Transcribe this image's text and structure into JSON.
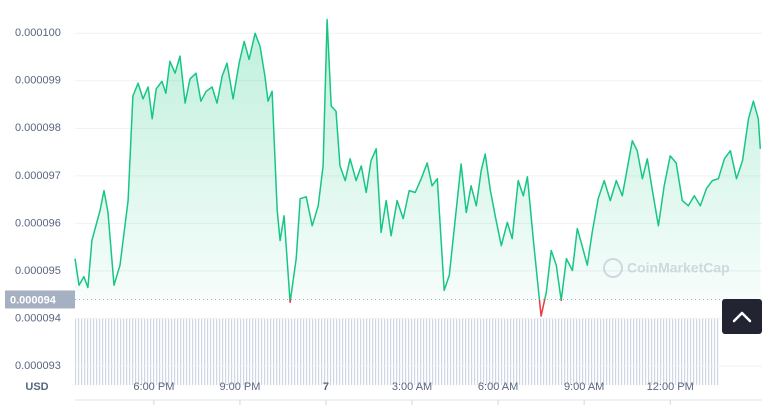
{
  "chart_data": {
    "type": "line",
    "currency": "USD",
    "watermark": "CoinMarketCap",
    "x": [
      15.25,
      15.39,
      15.56,
      15.7,
      15.84,
      16.12,
      16.26,
      16.4,
      16.61,
      16.82,
      17.1,
      17.27,
      17.45,
      17.62,
      17.8,
      17.94,
      18.08,
      18.28,
      18.42,
      18.56,
      18.74,
      18.91,
      19.09,
      19.26,
      19.47,
      19.64,
      19.82,
      20.03,
      20.2,
      20.38,
      20.55,
      20.76,
      20.97,
      21.15,
      21.32,
      21.53,
      21.7,
      21.87,
      21.98,
      22.12,
      22.3,
      22.4,
      22.54,
      22.75,
      22.96,
      23.1,
      23.31,
      23.52,
      23.73,
      23.9,
      24.04,
      24.18,
      24.35,
      24.49,
      24.67,
      24.84,
      25.05,
      25.23,
      25.4,
      25.57,
      25.75,
      25.92,
      26.1,
      26.27,
      26.48,
      26.69,
      26.9,
      27.11,
      27.32,
      27.53,
      27.7,
      27.88,
      28.12,
      28.3,
      28.5,
      28.71,
      28.89,
      29.06,
      29.24,
      29.41,
      29.55,
      29.73,
      29.9,
      30.11,
      30.32,
      30.49,
      30.7,
      30.88,
      31.02,
      31.23,
      31.5,
      31.68,
      31.85,
      32.03,
      32.2,
      32.38,
      32.59,
      32.76,
      32.93,
      33.11,
      33.28,
      33.49,
      33.7,
      33.91,
      34.12,
      34.33,
      34.5,
      34.68,
      34.85,
      35.03,
      35.2,
      35.38,
      35.59,
      35.79,
      36,
      36.21,
      36.42,
      36.63,
      36.84,
      37.05,
      37.26,
      37.47,
      37.68,
      37.89,
      38.1,
      38.31,
      38.52,
      38.73,
      38.9,
      39.07,
      39.14
    ],
    "series": [
      {
        "color": "#16c784",
        "down_color": "#ea3943",
        "values": [
          9.526e-05,
          9.47e-05,
          9.488e-05,
          9.465e-05,
          9.564e-05,
          9.627e-05,
          9.669e-05,
          9.623e-05,
          9.47e-05,
          9.512e-05,
          9.648e-05,
          9.868e-05,
          9.895e-05,
          9.862e-05,
          9.887e-05,
          9.82e-05,
          9.883e-05,
          9.899e-05,
          9.874e-05,
          9.941e-05,
          9.916e-05,
          9.952e-05,
          9.853e-05,
          9.904e-05,
          9.916e-05,
          9.857e-05,
          9.878e-05,
          9.887e-05,
          9.853e-05,
          9.91e-05,
          9.937e-05,
          9.862e-05,
          9.937e-05,
          9.983e-05,
          9.945e-05,
          0.0001,
          9.973e-05,
          9.91e-05,
          9.857e-05,
          9.878e-05,
          9.627e-05,
          9.564e-05,
          9.616e-05,
          9.434e-05,
          9.526e-05,
          9.652e-05,
          9.656e-05,
          9.595e-05,
          9.637e-05,
          9.721e-05,
          0.00010029,
          9.847e-05,
          9.836e-05,
          9.721e-05,
          9.69e-05,
          9.736e-05,
          9.69e-05,
          9.721e-05,
          9.665e-05,
          9.732e-05,
          9.757e-05,
          9.581e-05,
          9.648e-05,
          9.574e-05,
          9.648e-05,
          9.61e-05,
          9.669e-05,
          9.665e-05,
          9.694e-05,
          9.727e-05,
          9.679e-05,
          9.694e-05,
          9.459e-05,
          9.491e-05,
          9.606e-05,
          9.725e-05,
          9.623e-05,
          9.679e-05,
          9.637e-05,
          9.711e-05,
          9.746e-05,
          9.669e-05,
          9.616e-05,
          9.553e-05,
          9.602e-05,
          9.568e-05,
          9.69e-05,
          9.658e-05,
          9.698e-05,
          9.564e-05,
          9.405e-05,
          9.455e-05,
          9.543e-05,
          9.512e-05,
          9.438e-05,
          9.526e-05,
          9.501e-05,
          9.589e-05,
          9.553e-05,
          9.512e-05,
          9.581e-05,
          9.652e-05,
          9.69e-05,
          9.648e-05,
          9.69e-05,
          9.658e-05,
          9.715e-05,
          9.774e-05,
          9.753e-05,
          9.694e-05,
          9.736e-05,
          9.669e-05,
          9.595e-05,
          9.679e-05,
          9.742e-05,
          9.727e-05,
          9.648e-05,
          9.637e-05,
          9.658e-05,
          9.637e-05,
          9.673e-05,
          9.69e-05,
          9.694e-05,
          9.736e-05,
          9.753e-05,
          9.694e-05,
          9.732e-05,
          9.82e-05,
          9.857e-05,
          9.82e-05,
          9.757e-05
        ]
      }
    ],
    "baseline": {
      "value": 9.44e-05,
      "label": "0.000094"
    },
    "xlim": [
      15.25,
      39.2
    ],
    "xticks": [
      {
        "value": 18,
        "label": "6:00 PM"
      },
      {
        "value": 21,
        "label": "9:00 PM"
      },
      {
        "value": 24,
        "label": "7"
      },
      {
        "value": 27,
        "label": "3:00 AM"
      },
      {
        "value": 30,
        "label": "6:00 AM"
      },
      {
        "value": 33,
        "label": "9:00 AM"
      },
      {
        "value": 36,
        "label": "12:00 PM"
      }
    ],
    "ylim": [
      9.26e-05,
      0.0001007
    ],
    "yticks": [
      {
        "value": 0.0001,
        "label": "0.000100"
      },
      9.9e-05,
      9.8e-05,
      9.7e-05,
      9.6e-05,
      9.5e-05,
      9.4e-05,
      9.3e-05
    ],
    "grid": true
  }
}
